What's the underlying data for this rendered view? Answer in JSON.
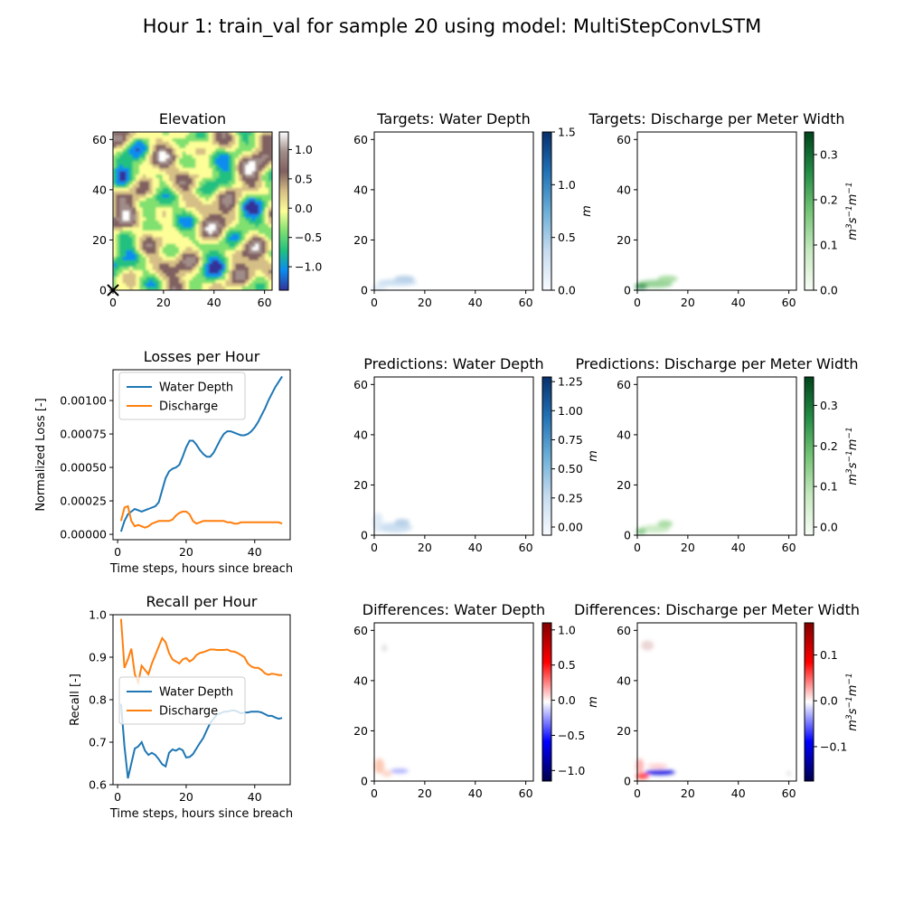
{
  "figure": {
    "title": "Hour 1: train_val for sample 20 using model: MultiStepConvLSTM"
  },
  "colors": {
    "water_depth": "#1f77b4",
    "discharge": "#ff7f0e",
    "terrain": [
      "#333399",
      "#0a8cf0",
      "#20c080",
      "#80e070",
      "#fefe98",
      "#d6bf86",
      "#806060",
      "#a08c88",
      "#ffffff"
    ],
    "blues": [
      "#f7fbff",
      "#c6dbef",
      "#6baed6",
      "#2171b5",
      "#08306b"
    ],
    "greens": [
      "#f7fcf5",
      "#c7e9c0",
      "#74c476",
      "#238b45",
      "#00441b"
    ],
    "seismic": [
      "#00004c",
      "#0000ff",
      "#ffffff",
      "#ff0000",
      "#800000"
    ]
  },
  "chart_data": [
    {
      "id": "elevation",
      "type": "heatmap",
      "title": "Elevation",
      "xlabel": "",
      "ylabel": "",
      "xlim": [
        0,
        63
      ],
      "ylim": [
        0,
        63
      ],
      "xticks": [
        "0",
        "20",
        "40",
        "60"
      ],
      "yticks": [
        "0",
        "20",
        "40",
        "60"
      ],
      "colorbar": {
        "range": [
          -1.4,
          1.3
        ],
        "ticks": [
          "−1.0",
          "−0.5",
          "0.0",
          "0.5",
          "1.0"
        ],
        "label": "",
        "cmap": "terrain"
      },
      "marker": {
        "x": 0,
        "y": 0,
        "symbol": "x"
      }
    },
    {
      "id": "targets-depth",
      "type": "heatmap",
      "title": "Targets: Water Depth",
      "xlim": [
        0,
        63
      ],
      "ylim": [
        0,
        63
      ],
      "xticks": [
        "0",
        "20",
        "40",
        "60"
      ],
      "yticks": [
        "0",
        "20",
        "40",
        "60"
      ],
      "colorbar": {
        "range": [
          0,
          1.5
        ],
        "ticks": [
          "0.0",
          "0.5",
          "1.0",
          "1.5"
        ],
        "label": "m",
        "cmap": "blues"
      }
    },
    {
      "id": "targets-discharge",
      "type": "heatmap",
      "title": "Targets: Discharge per Meter Width",
      "xlim": [
        0,
        63
      ],
      "ylim": [
        0,
        63
      ],
      "xticks": [
        "0",
        "20",
        "40",
        "60"
      ],
      "yticks": [
        "0",
        "20",
        "40",
        "60"
      ],
      "colorbar": {
        "range": [
          0,
          0.35
        ],
        "ticks": [
          "0.0",
          "0.1",
          "0.2",
          "0.3"
        ],
        "label": "m3s-1m-1",
        "cmap": "greens"
      }
    },
    {
      "id": "losses",
      "type": "line",
      "title": "Losses per Hour",
      "xlabel": "Time steps, hours since breach",
      "ylabel": "Normalized Loss [-]",
      "xlim": [
        -1.35,
        50.35
      ],
      "ylim": [
        -4e-05,
        0.00123
      ],
      "xticks": [
        0,
        20,
        40
      ],
      "xtick_labels": [
        "0",
        "20",
        "40"
      ],
      "yticks": [
        0,
        0.00025,
        0.0005,
        0.00075,
        0.001
      ],
      "ytick_labels": [
        "0.00000",
        "0.00025",
        "0.00050",
        "0.00075",
        "0.00100"
      ],
      "legend": "upper-left",
      "series": [
        {
          "name": "Water Depth",
          "color": "#1f77b4",
          "x": [
            1,
            2,
            3,
            4,
            5,
            6,
            7,
            8,
            9,
            10,
            11,
            12,
            13,
            14,
            15,
            16,
            17,
            18,
            19,
            20,
            21,
            22,
            23,
            24,
            25,
            26,
            27,
            28,
            29,
            30,
            31,
            32,
            33,
            34,
            35,
            36,
            37,
            38,
            39,
            40,
            41,
            42,
            43,
            44,
            45,
            46,
            47,
            48
          ],
          "y": [
            2e-05,
            0.0001,
            0.00015,
            0.00017,
            0.00019,
            0.00018,
            0.00017,
            0.00018,
            0.00019,
            0.0002,
            0.00021,
            0.00024,
            0.00033,
            0.00042,
            0.00047,
            0.00049,
            0.0005,
            0.00052,
            0.00058,
            0.00065,
            0.0007,
            0.0007,
            0.00067,
            0.00063,
            0.0006,
            0.00058,
            0.00058,
            0.00061,
            0.00066,
            0.00071,
            0.00075,
            0.00077,
            0.00077,
            0.00076,
            0.00075,
            0.00074,
            0.00074,
            0.00075,
            0.00077,
            0.0008,
            0.00084,
            0.00089,
            0.00094,
            0.001,
            0.00105,
            0.0011,
            0.00114,
            0.00118
          ]
        },
        {
          "name": "Discharge",
          "color": "#ff7f0e",
          "x": [
            1,
            2,
            3,
            4,
            5,
            6,
            7,
            8,
            9,
            10,
            11,
            12,
            13,
            14,
            15,
            16,
            17,
            18,
            19,
            20,
            21,
            22,
            23,
            24,
            25,
            26,
            27,
            28,
            29,
            30,
            31,
            32,
            33,
            34,
            35,
            36,
            37,
            38,
            39,
            40,
            41,
            42,
            43,
            44,
            45,
            46,
            47,
            48
          ],
          "y": [
            0.0001,
            0.0002,
            0.00021,
            0.0001,
            6e-05,
            7e-05,
            6e-05,
            5e-05,
            6e-05,
            8e-05,
            9e-05,
            0.0001,
            0.0001,
            0.0001,
            0.0001,
            0.00011,
            0.00014,
            0.00016,
            0.00017,
            0.00017,
            0.00015,
            0.0001,
            8e-05,
            9e-05,
            0.0001,
            0.0001,
            0.0001,
            0.0001,
            0.0001,
            0.0001,
            0.0001,
            9e-05,
            9e-05,
            8e-05,
            8e-05,
            9e-05,
            9e-05,
            9e-05,
            9e-05,
            9e-05,
            9e-05,
            9e-05,
            9e-05,
            9e-05,
            9e-05,
            9e-05,
            9e-05,
            8e-05
          ]
        }
      ]
    },
    {
      "id": "pred-depth",
      "type": "heatmap",
      "title": "Predictions: Water Depth",
      "xlim": [
        0,
        63
      ],
      "ylim": [
        0,
        63
      ],
      "xticks": [
        "0",
        "20",
        "40",
        "60"
      ],
      "yticks": [
        "0",
        "20",
        "40",
        "60"
      ],
      "colorbar": {
        "range": [
          -0.07,
          1.29
        ],
        "ticks": [
          "0.00",
          "0.25",
          "0.50",
          "0.75",
          "1.00",
          "1.25"
        ],
        "label": "m",
        "cmap": "blues"
      }
    },
    {
      "id": "pred-discharge",
      "type": "heatmap",
      "title": "Predictions: Discharge per Meter Width",
      "xlim": [
        0,
        63
      ],
      "ylim": [
        0,
        63
      ],
      "xticks": [
        "0",
        "20",
        "40",
        "60"
      ],
      "yticks": [
        "0",
        "20",
        "40",
        "60"
      ],
      "colorbar": {
        "range": [
          -0.02,
          0.37
        ],
        "ticks": [
          "0.0",
          "0.1",
          "0.2",
          "0.3"
        ],
        "label": "m3s-1m-1",
        "cmap": "greens"
      }
    },
    {
      "id": "recall",
      "type": "line",
      "title": "Recall per Hour",
      "xlabel": "Time steps, hours since breach",
      "ylabel": "Recall [-]",
      "xlim": [
        -1.35,
        50.35
      ],
      "ylim": [
        0.6,
        1.0
      ],
      "xticks": [
        0,
        20,
        40
      ],
      "xtick_labels": [
        "0",
        "20",
        "40"
      ],
      "yticks": [
        0.6,
        0.7,
        0.8,
        0.9,
        1.0
      ],
      "ytick_labels": [
        "0.6",
        "0.7",
        "0.8",
        "0.9",
        "1.0"
      ],
      "legend": "center-left",
      "series": [
        {
          "name": "Water Depth",
          "color": "#1f77b4",
          "x": [
            1,
            2,
            3,
            4,
            5,
            6,
            7,
            8,
            9,
            10,
            11,
            12,
            13,
            14,
            15,
            16,
            17,
            18,
            19,
            20,
            21,
            22,
            23,
            24,
            25,
            26,
            27,
            28,
            29,
            30,
            31,
            32,
            33,
            34,
            35,
            36,
            37,
            38,
            39,
            40,
            41,
            42,
            43,
            44,
            45,
            46,
            47,
            48
          ],
          "y": [
            0.79,
            0.69,
            0.615,
            0.65,
            0.685,
            0.69,
            0.7,
            0.68,
            0.67,
            0.675,
            0.67,
            0.66,
            0.648,
            0.643,
            0.675,
            0.683,
            0.68,
            0.685,
            0.681,
            0.664,
            0.665,
            0.672,
            0.685,
            0.698,
            0.71,
            0.728,
            0.745,
            0.755,
            0.765,
            0.768,
            0.772,
            0.772,
            0.774,
            0.775,
            0.772,
            0.768,
            0.77,
            0.77,
            0.772,
            0.772,
            0.772,
            0.77,
            0.766,
            0.762,
            0.762,
            0.758,
            0.755,
            0.757
          ]
        },
        {
          "name": "Discharge",
          "color": "#ff7f0e",
          "x": [
            1,
            2,
            3,
            4,
            5,
            6,
            7,
            8,
            9,
            10,
            11,
            12,
            13,
            14,
            15,
            16,
            17,
            18,
            19,
            20,
            21,
            22,
            23,
            24,
            25,
            26,
            27,
            28,
            29,
            30,
            31,
            32,
            33,
            34,
            35,
            36,
            37,
            38,
            39,
            40,
            41,
            42,
            43,
            44,
            45,
            46,
            47,
            48
          ],
          "y": [
            0.99,
            0.875,
            0.895,
            0.92,
            0.86,
            0.84,
            0.88,
            0.87,
            0.86,
            0.885,
            0.905,
            0.925,
            0.945,
            0.935,
            0.91,
            0.895,
            0.89,
            0.885,
            0.895,
            0.898,
            0.89,
            0.895,
            0.905,
            0.91,
            0.912,
            0.915,
            0.918,
            0.918,
            0.917,
            0.917,
            0.917,
            0.918,
            0.914,
            0.913,
            0.91,
            0.905,
            0.9,
            0.885,
            0.878,
            0.875,
            0.875,
            0.87,
            0.862,
            0.859,
            0.861,
            0.86,
            0.858,
            0.858
          ]
        }
      ]
    },
    {
      "id": "diff-depth",
      "type": "heatmap",
      "title": "Differences: Water Depth",
      "xlim": [
        0,
        63
      ],
      "ylim": [
        0,
        63
      ],
      "xticks": [
        "0",
        "20",
        "40",
        "60"
      ],
      "yticks": [
        "0",
        "20",
        "40",
        "60"
      ],
      "colorbar": {
        "range": [
          -1.15,
          1.1
        ],
        "ticks": [
          "−1.0",
          "−0.5",
          "0.0",
          "0.5",
          "1.0"
        ],
        "label": "m",
        "cmap": "seismic"
      }
    },
    {
      "id": "diff-discharge",
      "type": "heatmap",
      "title": "Differences: Discharge per Meter Width",
      "xlim": [
        0,
        63
      ],
      "ylim": [
        0,
        63
      ],
      "xticks": [
        "0",
        "20",
        "40",
        "60"
      ],
      "yticks": [
        "0",
        "20",
        "40",
        "60"
      ],
      "colorbar": {
        "range": [
          -0.175,
          0.17
        ],
        "ticks": [
          "−0.1",
          "0.0",
          "0.1"
        ],
        "label": "m3s-1m-1",
        "cmap": "seismic"
      }
    }
  ]
}
